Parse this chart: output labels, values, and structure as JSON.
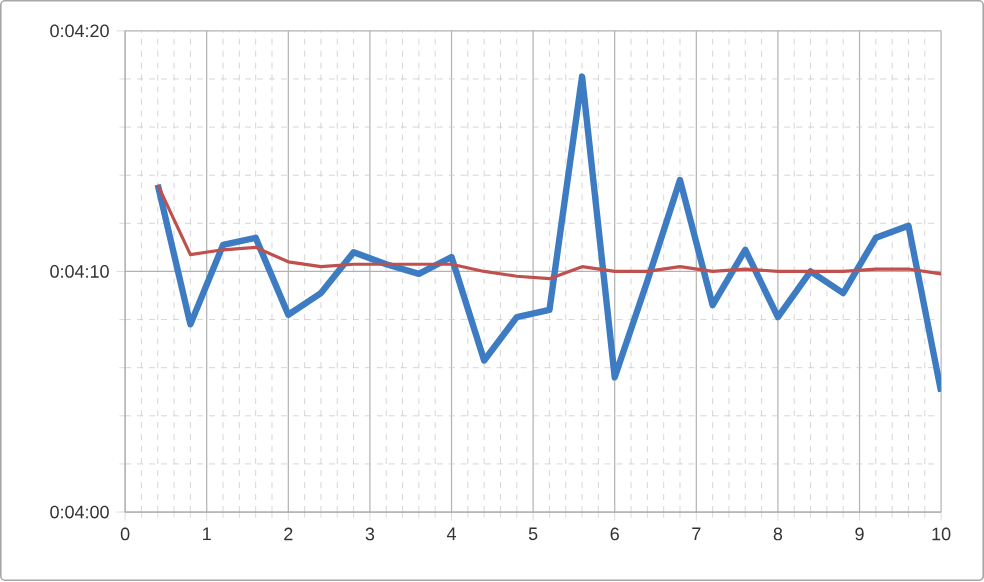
{
  "chart_data": {
    "type": "line",
    "x": [
      0.4,
      0.8,
      1.2,
      1.6,
      2.0,
      2.4,
      2.8,
      3.2,
      3.6,
      4.0,
      4.4,
      4.8,
      5.2,
      5.6,
      6.0,
      6.4,
      6.8,
      7.2,
      7.6,
      8.0,
      8.4,
      8.8,
      9.2,
      9.6,
      10.0
    ],
    "series": [
      {
        "color": "#3d7cc2",
        "values": [
          253.6,
          247.8,
          251.1,
          251.4,
          248.2,
          249.1,
          250.8,
          250.3,
          249.9,
          250.6,
          246.3,
          248.1,
          248.4,
          258.1,
          245.6,
          249.6,
          253.8,
          248.6,
          250.9,
          248.1,
          250.0,
          249.1,
          251.4,
          251.9,
          245.0
        ]
      },
      {
        "color": "#c0504d",
        "values": [
          253.6,
          250.7,
          250.9,
          251.0,
          250.4,
          250.2,
          250.3,
          250.3,
          250.3,
          250.3,
          250.0,
          249.8,
          249.7,
          250.2,
          250.0,
          250.0,
          250.2,
          250.0,
          250.1,
          250.0,
          250.0,
          250.0,
          250.1,
          250.1,
          249.9
        ]
      }
    ],
    "xlim": [
      0,
      10
    ],
    "xticks": [
      0,
      1,
      2,
      3,
      4,
      5,
      6,
      7,
      8,
      9,
      10
    ],
    "ylim": [
      240,
      260
    ],
    "yticks": [
      {
        "value": 240,
        "label": "0:04:00"
      },
      {
        "value": 250,
        "label": "0:04:10"
      },
      {
        "value": 260,
        "label": "0:04:20"
      }
    ],
    "grid": true,
    "marker": "none",
    "line_style": "solid"
  }
}
